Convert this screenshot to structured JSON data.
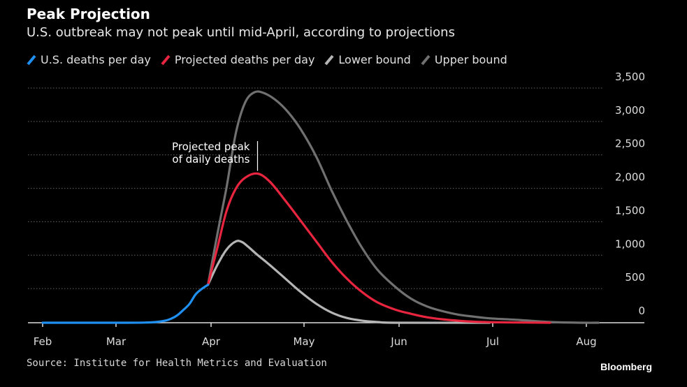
{
  "header": {
    "title": "Peak Projection",
    "subtitle": "U.S. outbreak may not peak until mid-April, according to projections"
  },
  "footer": {
    "source": "Source: Institute for Health Metrics and Evaluation",
    "brand": "Bloomberg"
  },
  "chart_data": {
    "type": "line",
    "title": "Peak Projection",
    "subtitle": "U.S. outbreak may not peak until mid-April, according to projections",
    "xlabel": "",
    "ylabel": "",
    "x_axis_ticks": [
      "Feb",
      "Mar",
      "Apr",
      "May",
      "Jun",
      "Jul",
      "Aug"
    ],
    "x_tick_dates": [
      "2020-02-01",
      "2020-03-01",
      "2020-04-01",
      "2020-05-01",
      "2020-06-01",
      "2020-07-01",
      "2020-08-01"
    ],
    "xlim": [
      "2020-02-01",
      "2020-08-04"
    ],
    "y_ticks": [
      0,
      500,
      1000,
      1500,
      2000,
      2500,
      3000,
      3500
    ],
    "y_tick_labels": [
      "0",
      "500",
      "1,000",
      "1,500",
      "2,000",
      "2,500",
      "3,000",
      "3,500"
    ],
    "ylim": [
      0,
      3500
    ],
    "y_axis_side": "right",
    "grid": true,
    "legend_placement": "top-left",
    "annotation": {
      "text_lines": [
        "Projected peak",
        "of daily deaths"
      ],
      "x": "2020-04-16",
      "y": 2200
    },
    "series": [
      {
        "name": "U.S. deaths per day",
        "color": "#1f8ff0",
        "points": [
          [
            "2020-02-01",
            0
          ],
          [
            "2020-02-15",
            0
          ],
          [
            "2020-03-01",
            0
          ],
          [
            "2020-03-10",
            2
          ],
          [
            "2020-03-14",
            10
          ],
          [
            "2020-03-17",
            30
          ],
          [
            "2020-03-19",
            60
          ],
          [
            "2020-03-21",
            110
          ],
          [
            "2020-03-23",
            190
          ],
          [
            "2020-03-25",
            280
          ],
          [
            "2020-03-27",
            420
          ],
          [
            "2020-03-29",
            500
          ],
          [
            "2020-03-31",
            560
          ]
        ]
      },
      {
        "name": "Projected deaths per day",
        "color": "#e8253f",
        "points": [
          [
            "2020-03-31",
            560
          ],
          [
            "2020-04-03",
            1100
          ],
          [
            "2020-04-06",
            1650
          ],
          [
            "2020-04-09",
            1980
          ],
          [
            "2020-04-12",
            2140
          ],
          [
            "2020-04-16",
            2200
          ],
          [
            "2020-04-20",
            2080
          ],
          [
            "2020-04-25",
            1800
          ],
          [
            "2020-04-30",
            1500
          ],
          [
            "2020-05-05",
            1200
          ],
          [
            "2020-05-10",
            900
          ],
          [
            "2020-05-15",
            650
          ],
          [
            "2020-05-20",
            450
          ],
          [
            "2020-05-25",
            300
          ],
          [
            "2020-05-31",
            190
          ],
          [
            "2020-06-05",
            130
          ],
          [
            "2020-06-10",
            80
          ],
          [
            "2020-06-15",
            50
          ],
          [
            "2020-06-20",
            30
          ],
          [
            "2020-06-25",
            15
          ],
          [
            "2020-06-30",
            8
          ],
          [
            "2020-07-10",
            3
          ],
          [
            "2020-07-20",
            0
          ]
        ]
      },
      {
        "name": "Lower bound",
        "color": "#b5b5b5",
        "points": [
          [
            "2020-03-31",
            560
          ],
          [
            "2020-04-03",
            850
          ],
          [
            "2020-04-06",
            1080
          ],
          [
            "2020-04-09",
            1200
          ],
          [
            "2020-04-11",
            1190
          ],
          [
            "2020-04-13",
            1120
          ],
          [
            "2020-04-16",
            1000
          ],
          [
            "2020-04-20",
            850
          ],
          [
            "2020-04-25",
            650
          ],
          [
            "2020-04-30",
            450
          ],
          [
            "2020-05-05",
            280
          ],
          [
            "2020-05-10",
            150
          ],
          [
            "2020-05-15",
            70
          ],
          [
            "2020-05-20",
            30
          ],
          [
            "2020-05-25",
            10
          ],
          [
            "2020-05-31",
            0
          ],
          [
            "2020-06-30",
            0
          ]
        ]
      },
      {
        "name": "Upper bound",
        "color": "#707070",
        "points": [
          [
            "2020-03-31",
            560
          ],
          [
            "2020-04-03",
            1300
          ],
          [
            "2020-04-06",
            2000
          ],
          [
            "2020-04-09",
            2800
          ],
          [
            "2020-04-12",
            3250
          ],
          [
            "2020-04-15",
            3400
          ],
          [
            "2020-04-18",
            3390
          ],
          [
            "2020-04-22",
            3280
          ],
          [
            "2020-04-26",
            3100
          ],
          [
            "2020-04-30",
            2850
          ],
          [
            "2020-05-05",
            2450
          ],
          [
            "2020-05-10",
            1950
          ],
          [
            "2020-05-15",
            1500
          ],
          [
            "2020-05-20",
            1100
          ],
          [
            "2020-05-25",
            780
          ],
          [
            "2020-05-31",
            520
          ],
          [
            "2020-06-05",
            350
          ],
          [
            "2020-06-10",
            240
          ],
          [
            "2020-06-15",
            170
          ],
          [
            "2020-06-20",
            120
          ],
          [
            "2020-06-25",
            90
          ],
          [
            "2020-06-30",
            65
          ],
          [
            "2020-07-10",
            40
          ],
          [
            "2020-07-20",
            10
          ],
          [
            "2020-07-31",
            0
          ],
          [
            "2020-08-05",
            0
          ]
        ]
      }
    ]
  }
}
